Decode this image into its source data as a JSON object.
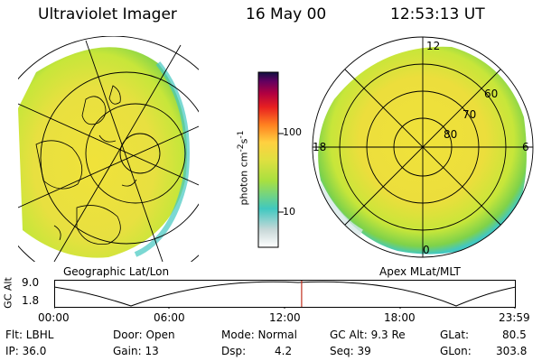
{
  "header": {
    "instrument": "Ultraviolet Imager",
    "date": "16 May 00",
    "time": "12:53:13 UT"
  },
  "colors": {
    "image_yellow": "#f0e23a",
    "image_lime": "#c7e63a",
    "image_green": "#7fd24a",
    "image_cyan": "#43c8c0",
    "marker_red": "#c03020"
  },
  "left_panel": {
    "caption": "Geographic Lat/Lon"
  },
  "right_panel": {
    "caption": "Apex MLat/MLT",
    "mlt_labels": {
      "top": "12",
      "left": "18",
      "right": "6",
      "bottom": "0"
    },
    "lat_labels": [
      "60",
      "70",
      "80"
    ]
  },
  "colorbar": {
    "unit_label": "photon cm",
    "unit_exp1": "-2",
    "unit_mid": "s",
    "unit_exp2": "-1",
    "ticks": [
      "100",
      "10"
    ],
    "stops": [
      "#ffffff",
      "#c8d8d8",
      "#40c8c0",
      "#a8e040",
      "#e0e040",
      "#ffd040",
      "#ff8020",
      "#e82020",
      "#b00040",
      "#600060",
      "#101040"
    ]
  },
  "altitude_plot": {
    "ylabel": "GC Alt",
    "y_ticks": [
      "9.0",
      "1.8"
    ],
    "x_ticks": [
      "00:00",
      "06:00",
      "12:00",
      "18:00",
      "23:59"
    ],
    "current_time_fraction": 0.537
  },
  "status": {
    "flt": "Flt: LBHL",
    "ip": "IP: 36.0",
    "door": "Door: Open",
    "gain": "Gain: 13",
    "mode": "Mode: Normal",
    "dsp": "Dsp:",
    "dsp_value": "4.2",
    "gc_alt": "GC Alt: 9.3 Re",
    "seq": "Seq: 39",
    "glat": "GLat:",
    "glat_value": "80.5",
    "glon": "GLon:",
    "glon_value": "303.8"
  }
}
